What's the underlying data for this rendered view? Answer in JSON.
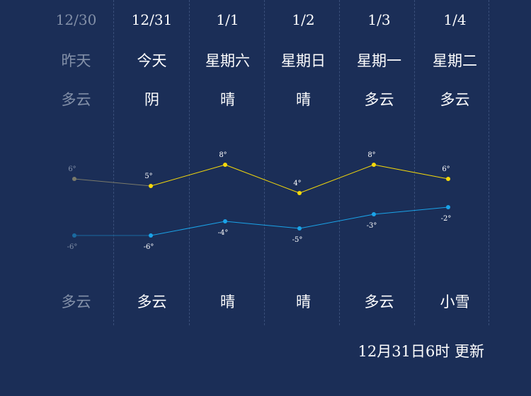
{
  "days": [
    {
      "date": "12/30",
      "day": "昨天",
      "weather_day": "多云",
      "weather_night": "多云",
      "past": true
    },
    {
      "date": "12/31",
      "day": "今天",
      "weather_day": "阴",
      "weather_night": "多云",
      "past": false
    },
    {
      "date": "1/1",
      "day": "星期六",
      "weather_day": "晴",
      "weather_night": "晴",
      "past": false
    },
    {
      "date": "1/2",
      "day": "星期日",
      "weather_day": "晴",
      "weather_night": "晴",
      "past": false
    },
    {
      "date": "1/3",
      "day": "星期一",
      "weather_day": "多云",
      "weather_night": "多云",
      "past": false
    },
    {
      "date": "1/4",
      "day": "星期二",
      "weather_day": "多云",
      "weather_night": "小雪",
      "past": false
    }
  ],
  "chart_data": {
    "type": "line",
    "categories": [
      "12/30",
      "12/31",
      "1/1",
      "1/2",
      "1/3",
      "1/4"
    ],
    "series": [
      {
        "values": [
          6,
          5,
          8,
          4,
          8,
          6
        ],
        "labels": [
          "6°",
          "5°",
          "8°",
          "4°",
          "8°",
          "6°"
        ],
        "color": "#f5d90a"
      },
      {
        "values": [
          -6,
          -6,
          -4,
          -5,
          -3,
          -2
        ],
        "labels": [
          "-6°",
          "-6°",
          "-4°",
          "-5°",
          "-3°",
          "-2°"
        ],
        "color": "#1aa3e8"
      }
    ],
    "past_color_high": "#7a7a6a",
    "past_color_low": "#1a6aa0"
  },
  "update_text": "12月31日6时 更新"
}
